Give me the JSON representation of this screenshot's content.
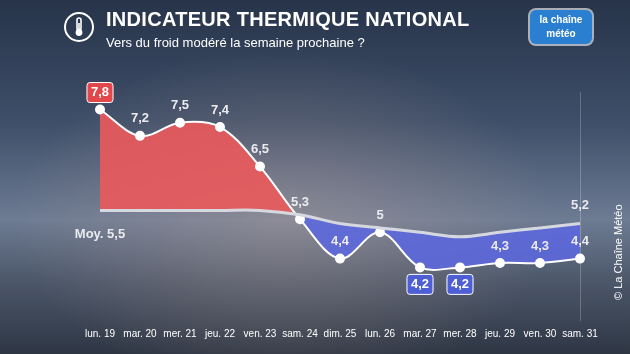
{
  "chart_data": {
    "type": "line",
    "title": "INDICATEUR THERMIQUE NATIONAL",
    "subtitle": "Vers du froid modéré la semaine prochaine ?",
    "logo": "la chaîne météo",
    "source": "© La Chaîne Météo",
    "categories": [
      "lun. 19",
      "mar. 20",
      "mer. 21",
      "jeu. 22",
      "ven. 23",
      "sam. 24",
      "dim. 25",
      "lun. 26",
      "mar. 27",
      "mer. 28",
      "jeu. 29",
      "ven. 30",
      "sam. 31"
    ],
    "series": [
      {
        "color": "#ffffff",
        "marker": "circle",
        "values": [
          7.8,
          7.2,
          7.5,
          7.4,
          6.5,
          5.3,
          4.4,
          5,
          4.2,
          4.2,
          4.3,
          4.3,
          4.4
        ],
        "value_labels": [
          "7,8",
          "7,2",
          "7,5",
          "7,4",
          "6,5",
          "5,3",
          "4,4",
          "5",
          "4,2",
          "4,2",
          "4,3",
          "4,3",
          "4,4"
        ]
      },
      {
        "color": "#d6d8e0",
        "marker": "none",
        "values": [
          5.5,
          5.5,
          5.5,
          5.5,
          5.5,
          5.4,
          5.2,
          5.1,
          5.0,
          4.9,
          5.0,
          5.1,
          5.2
        ],
        "value_labels": [
          "Moy. 5,5",
          null,
          null,
          null,
          null,
          null,
          null,
          null,
          null,
          null,
          null,
          null,
          "5,2"
        ]
      }
    ],
    "ylim": [
      3,
      8.2
    ],
    "grid": false,
    "tick_labels": "x",
    "data_labels": true
  }
}
